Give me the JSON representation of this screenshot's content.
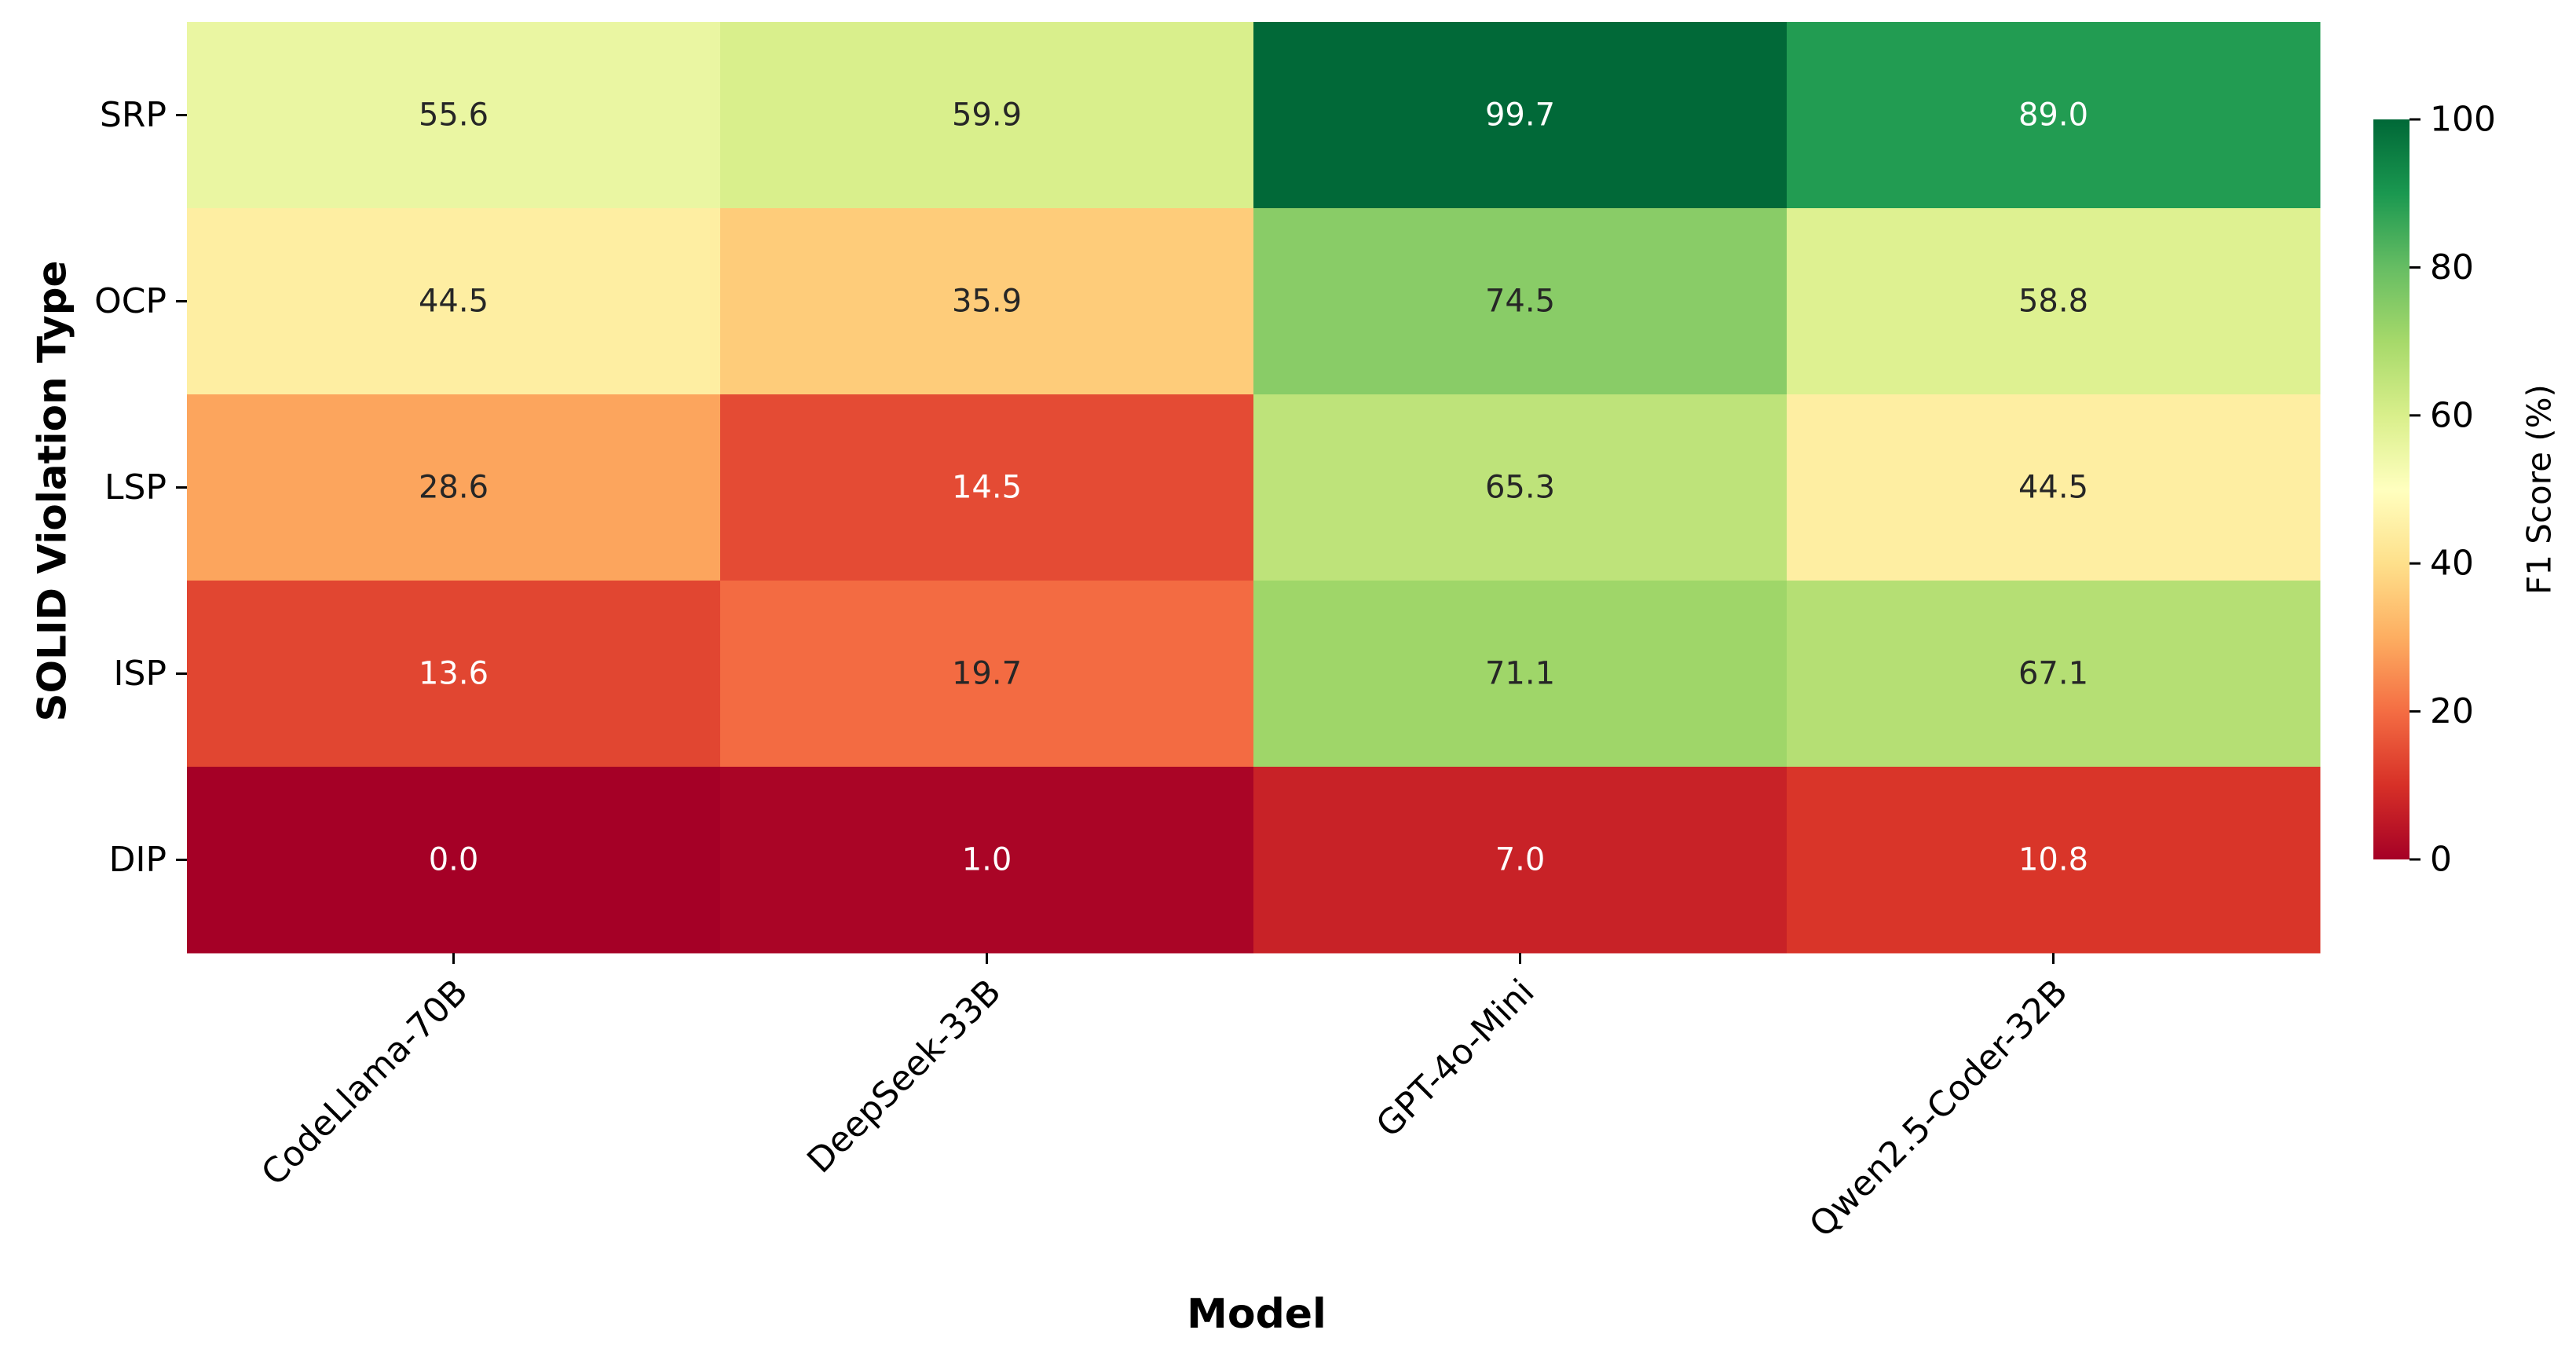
{
  "chart_data": {
    "type": "heatmap",
    "xlabel": "Model",
    "ylabel": "SOLID Violation Type",
    "x_categories": [
      "CodeLlama-70B",
      "DeepSeek-33B",
      "GPT-4o-Mini",
      "Qwen2.5-Coder-32B"
    ],
    "y_categories": [
      "SRP",
      "OCP",
      "LSP",
      "ISP",
      "DIP"
    ],
    "values": [
      [
        55.6,
        59.9,
        99.7,
        89.0
      ],
      [
        44.5,
        35.9,
        74.5,
        58.8
      ],
      [
        28.6,
        14.5,
        65.3,
        44.5
      ],
      [
        13.6,
        19.7,
        71.1,
        67.1
      ],
      [
        0.0,
        1.0,
        7.0,
        10.8
      ]
    ],
    "value_format": "0.0",
    "colormap": "RdYlGn",
    "vmin": 0,
    "vmax": 100,
    "colorbar": {
      "label": "F1 Score (%)",
      "ticks": [
        0,
        20,
        40,
        60,
        80,
        100
      ]
    },
    "grid": false
  }
}
